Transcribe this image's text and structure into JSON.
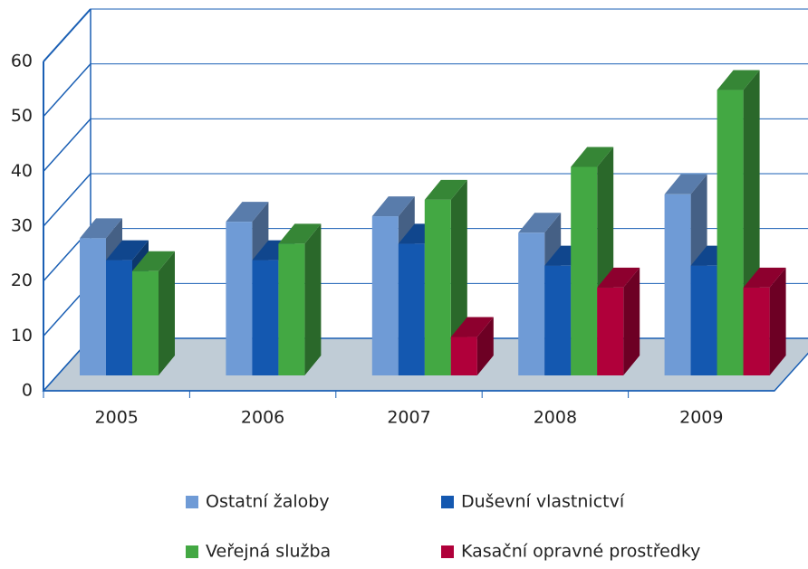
{
  "chart_data": {
    "type": "bar3d",
    "categories": [
      "2005",
      "2006",
      "2007",
      "2008",
      "2009"
    ],
    "series": [
      {
        "name": "Ostatní žaloby",
        "color": "#6f9bd6",
        "values": [
          25,
          28,
          29,
          26,
          33
        ]
      },
      {
        "name": "Duševní vlastnictví",
        "color": "#1458b0",
        "values": [
          21,
          21,
          24,
          20,
          20
        ]
      },
      {
        "name": "Veřejná služba",
        "color": "#43a843",
        "values": [
          19,
          24,
          32,
          38,
          52
        ]
      },
      {
        "name": "Kasační opravné prostředky",
        "color": "#b0003a",
        "values": [
          null,
          null,
          7,
          16,
          16
        ]
      }
    ],
    "ylim": [
      0,
      60
    ],
    "yticks": [
      0,
      10,
      20,
      30,
      40,
      50,
      60
    ],
    "grid": true,
    "legend": "bottom"
  }
}
